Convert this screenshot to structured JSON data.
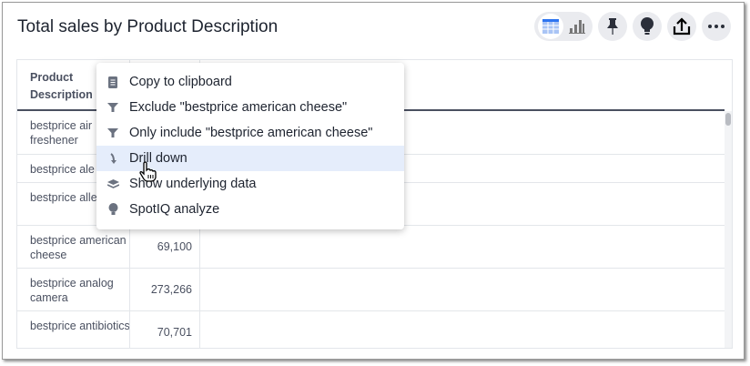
{
  "title": "Total sales by Product Description",
  "toolbar": {
    "icons": [
      "table-icon",
      "bar-chart-icon",
      "pin-icon",
      "lightbulb-icon",
      "share-icon",
      "more-icon"
    ]
  },
  "table": {
    "headers": [
      "Product Description",
      ""
    ],
    "rows": [
      {
        "desc": "bestprice air freshener",
        "value": ""
      },
      {
        "desc": "bestprice ale",
        "value": ""
      },
      {
        "desc": "bestprice alle pills",
        "value": ""
      },
      {
        "desc": "bestprice american cheese",
        "value": "69,100"
      },
      {
        "desc": "bestprice analog camera",
        "value": "273,266"
      },
      {
        "desc": "bestprice antibiotics",
        "value": "70,701"
      }
    ]
  },
  "menu": {
    "items": [
      {
        "label": "Copy to clipboard",
        "icon": "clipboard-icon"
      },
      {
        "label": "Exclude \"bestprice american cheese\"",
        "icon": "filter-icon"
      },
      {
        "label": "Only include \"bestprice american cheese\"",
        "icon": "filter-icon"
      },
      {
        "label": "Drill down",
        "icon": "drill-down-icon"
      },
      {
        "label": "Show underlying data",
        "icon": "layers-icon"
      },
      {
        "label": "SpotIQ analyze",
        "icon": "lightbulb-icon"
      }
    ]
  },
  "colors": {
    "highlight": "#e5edfb",
    "accent": "#2e75f0"
  }
}
